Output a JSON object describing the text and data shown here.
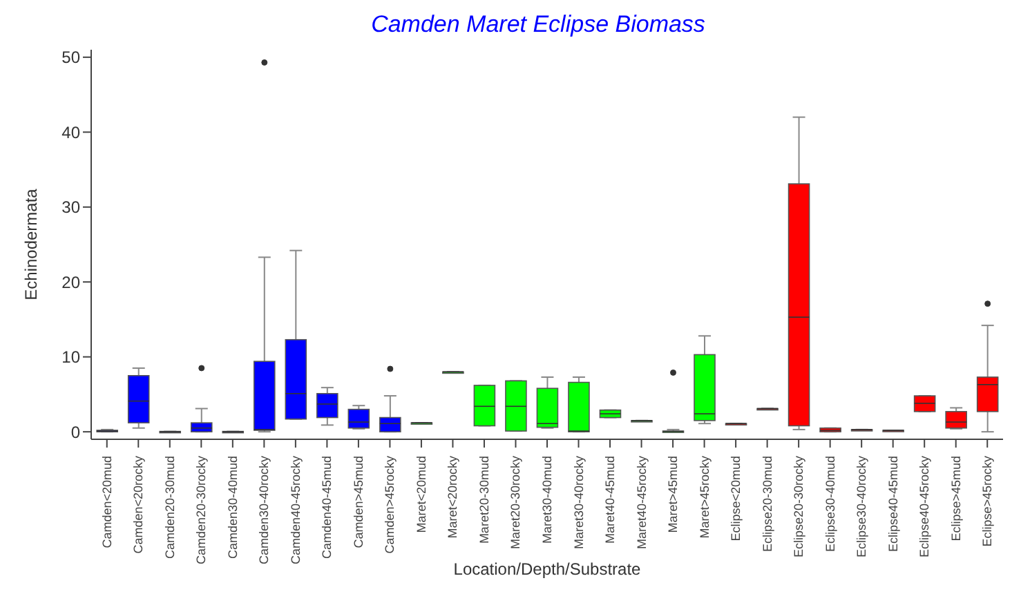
{
  "chart_data": {
    "type": "box",
    "title": "Camden Maret Eclipse Biomass",
    "xlabel": "Location/Depth/Substrate",
    "ylabel": "Echinodermata",
    "categories": [
      "Camden<20mud",
      "Camden<20rocky",
      "Camden20-30mud",
      "Camden20-30rocky",
      "Camden30-40mud",
      "Camden30-40rocky",
      "Camden40-45rocky",
      "Camden40-45mud",
      "Camden>45mud",
      "Camden>45rocky",
      "Maret<20mud",
      "Maret<20rocky",
      "Maret20-30mud",
      "Maret20-30rocky",
      "Maret30-40mud",
      "Maret30-40rocky",
      "Maret40-45mud",
      "Maret40-45rocky",
      "Maret>45mud",
      "Maret>45rocky",
      "Eclipse<20mud",
      "Eclipse20-30mud",
      "Eclipse20-30rocky",
      "Eclipse30-40mud",
      "Eclipse30-40rocky",
      "Eclipse40-45mud",
      "Eclipse40-45rocky",
      "Eclipse>45mud",
      "Eclipse>45rocky"
    ],
    "boxes": [
      {
        "low": 0,
        "q1": 0,
        "median": 0.1,
        "q3": 0.2,
        "high": 0.3
      },
      {
        "low": 0.5,
        "q1": 1.2,
        "median": 4.1,
        "q3": 7.5,
        "high": 8.5
      },
      {
        "low": 0,
        "q1": 0,
        "median": 0,
        "q3": 0.05,
        "high": 0.05
      },
      {
        "low": 0,
        "q1": 0,
        "median": 0.5,
        "q3": 1.2,
        "high": 3.1,
        "outliers": [
          8.5
        ]
      },
      {
        "low": 0,
        "q1": 0,
        "median": 0,
        "q3": 0.05,
        "high": 0.05
      },
      {
        "low": 0,
        "q1": 0.2,
        "median": 0.3,
        "q3": 9.4,
        "high": 23.3,
        "outliers": [
          49.3
        ]
      },
      {
        "low": 1.7,
        "q1": 1.7,
        "median": 5.1,
        "q3": 12.3,
        "high": 24.2
      },
      {
        "low": 0.9,
        "q1": 1.9,
        "median": 3.7,
        "q3": 5.1,
        "high": 5.9
      },
      {
        "low": 0.4,
        "q1": 0.5,
        "median": 1.3,
        "q3": 3.0,
        "high": 3.5
      },
      {
        "low": 0,
        "q1": 0,
        "median": 1.1,
        "q3": 1.9,
        "high": 4.8,
        "outliers": [
          8.4
        ]
      },
      {
        "low": 1.2,
        "q1": 1.2,
        "median": 1.2,
        "q3": 1.2,
        "high": 1.2
      },
      {
        "low": 8.0,
        "q1": 8.0,
        "median": 8.0,
        "q3": 8.0,
        "high": 8.0
      },
      {
        "low": 0.8,
        "q1": 0.8,
        "median": 3.4,
        "q3": 6.2,
        "high": 6.2
      },
      {
        "low": 0.1,
        "q1": 0.1,
        "median": 3.4,
        "q3": 6.8,
        "high": 6.8
      },
      {
        "low": 0.5,
        "q1": 0.6,
        "median": 1.1,
        "q3": 5.8,
        "high": 7.3
      },
      {
        "low": 0,
        "q1": 0,
        "median": 0.1,
        "q3": 6.6,
        "high": 7.3
      },
      {
        "low": 1.9,
        "q1": 1.9,
        "median": 2.4,
        "q3": 2.9,
        "high": 2.9
      },
      {
        "low": 1.5,
        "q1": 1.5,
        "median": 1.5,
        "q3": 1.5,
        "high": 1.5
      },
      {
        "low": 0,
        "q1": 0,
        "median": 0.05,
        "q3": 0.1,
        "high": 0.3,
        "outliers": [
          7.9
        ]
      },
      {
        "low": 1.1,
        "q1": 1.5,
        "median": 2.4,
        "q3": 10.3,
        "high": 12.8
      },
      {
        "low": 1.1,
        "q1": 1.1,
        "median": 1.1,
        "q3": 1.1,
        "high": 1.1
      },
      {
        "low": 3.1,
        "q1": 3.1,
        "median": 3.1,
        "q3": 3.1,
        "high": 3.1
      },
      {
        "low": 0.3,
        "q1": 0.8,
        "median": 15.3,
        "q3": 33.1,
        "high": 42.0
      },
      {
        "low": 0,
        "q1": 0,
        "median": 0.2,
        "q3": 0.5,
        "high": 0.5
      },
      {
        "low": 0.3,
        "q1": 0.3,
        "median": 0.3,
        "q3": 0.3,
        "high": 0.3
      },
      {
        "low": 0.2,
        "q1": 0.2,
        "median": 0.2,
        "q3": 0.2,
        "high": 0.2
      },
      {
        "low": 2.7,
        "q1": 2.7,
        "median": 3.8,
        "q3": 4.8,
        "high": 4.8
      },
      {
        "low": 0.4,
        "q1": 0.5,
        "median": 1.3,
        "q3": 2.7,
        "high": 3.2
      },
      {
        "low": 0,
        "q1": 2.7,
        "median": 6.3,
        "q3": 7.3,
        "high": 14.2,
        "outliers": [
          17.1
        ]
      }
    ],
    "colors": [
      "#0000ff",
      "#0000ff",
      "#0000ff",
      "#0000ff",
      "#0000ff",
      "#0000ff",
      "#0000ff",
      "#0000ff",
      "#0000ff",
      "#0000ff",
      "#00ff00",
      "#00ff00",
      "#00ff00",
      "#00ff00",
      "#00ff00",
      "#00ff00",
      "#00ff00",
      "#00ff00",
      "#00ff00",
      "#00ff00",
      "#ff0000",
      "#ff0000",
      "#ff0000",
      "#ff0000",
      "#ff0000",
      "#ff0000",
      "#ff0000",
      "#ff0000",
      "#ff0000"
    ],
    "ylim": [
      -1,
      51
    ],
    "yticks": [
      0,
      10,
      20,
      30,
      40,
      50
    ]
  }
}
